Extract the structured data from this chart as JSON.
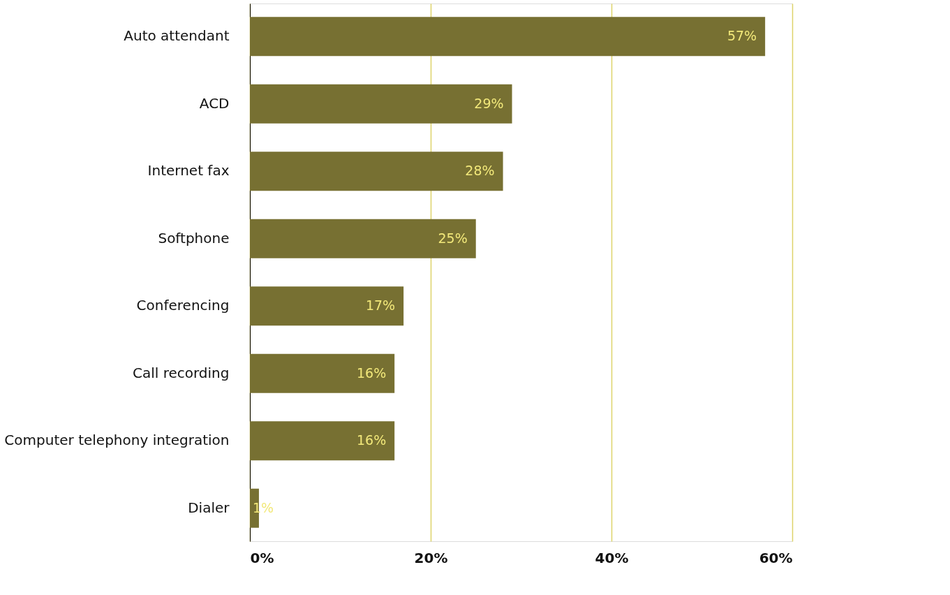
{
  "chart_data": {
    "type": "bar",
    "orientation": "horizontal",
    "categories": [
      "Auto attendant",
      "ACD",
      "Internet fax",
      "Softphone",
      "Conferencing",
      "Call recording",
      "Computer telephony integration",
      "Dialer"
    ],
    "values": [
      57,
      29,
      28,
      25,
      17,
      16,
      16,
      1
    ],
    "color": "#777032",
    "xlim": [
      0,
      60
    ],
    "xticks": [
      {
        "value": 0,
        "label": "0%"
      },
      {
        "value": 20,
        "label": "20%"
      },
      {
        "value": 40,
        "label": "40%"
      },
      {
        "value": 60,
        "label": "60%"
      }
    ],
    "value_labels": [
      "57%",
      "29%",
      "28%",
      "25%",
      "17%",
      "16%",
      "16%",
      "1%"
    ],
    "grid": "x"
  }
}
